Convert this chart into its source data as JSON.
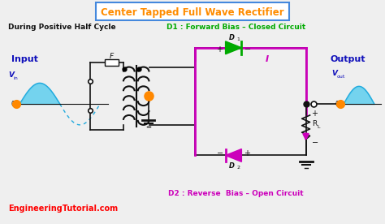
{
  "title": "Center Tapped Full Wave Rectifier",
  "title_color": "#FF8C00",
  "title_box_color": "#4488DD",
  "bg_color": "#EFEFEF",
  "subtitle_left": "During Positive Half Cycle",
  "label_d1": "D1 : Forward Bias – Closed Circuit",
  "label_d2": "D2 : Reverse  Bias – Open Circuit",
  "label_input": "Input",
  "label_output": "Output",
  "label_vin": "V",
  "label_vin_sub": "in",
  "label_vout": "V",
  "label_vout_sub": "out",
  "label_F": "F",
  "label_D1": "D",
  "label_D1_sub": "1",
  "label_D2": "D",
  "label_D2_sub": "2",
  "label_RL": "R",
  "label_RL_sub": "L",
  "label_I": "I",
  "watermark": "EngineeringTutorial.com",
  "watermark_color": "#FF0000",
  "green_color": "#00AA00",
  "blue_color": "#1111BB",
  "magenta_color": "#CC00BB",
  "orange_color": "#FF8800",
  "dark_color": "#111111",
  "cyan_fill": "#55CCEE",
  "cyan_line": "#22AADD",
  "plus_minus_color": "#111111",
  "title_fs": 8.5,
  "label_fs": 6.5,
  "input_output_fs": 8,
  "watermark_fs": 7
}
